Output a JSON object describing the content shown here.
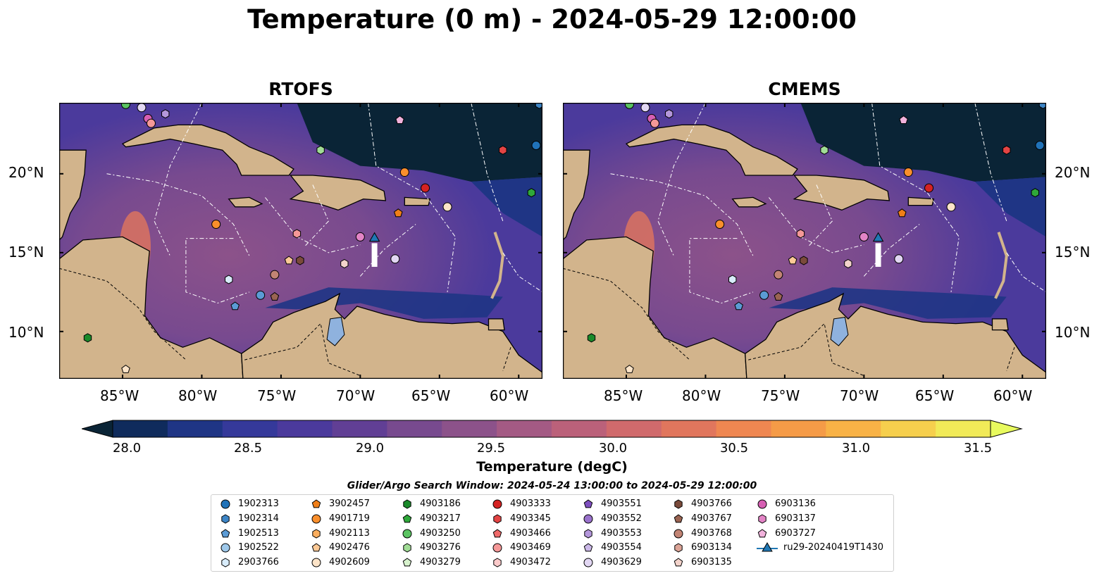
{
  "title": "Temperature (0 m) - 2024-05-29 12:00:00",
  "panels": [
    {
      "title": "RTOFS"
    },
    {
      "title": "CMEMS"
    }
  ],
  "lat_labels": [
    "20°N",
    "15°N",
    "10°N"
  ],
  "lon_labels": [
    "85°W",
    "80°W",
    "75°W",
    "70°W",
    "65°W",
    "60°W"
  ],
  "lon_values": [
    -85,
    -80,
    -75,
    -70,
    -65,
    -60
  ],
  "lat_values": [
    20,
    15,
    10
  ],
  "extent": {
    "lon": [
      -89,
      -58.5
    ],
    "lat": [
      7,
      24.5
    ]
  },
  "colorbar": {
    "label": "Temperature (degC)",
    "ticks": [
      "28.0",
      "28.5",
      "29.0",
      "29.5",
      "30.0",
      "30.5",
      "31.0",
      "31.5"
    ],
    "tick_values": [
      28.0,
      28.5,
      29.0,
      29.5,
      30.0,
      30.5,
      31.0,
      31.5
    ],
    "range": [
      28.0,
      31.5
    ],
    "colors": [
      "#0a2436",
      "#0f2b5c",
      "#1f3585",
      "#35399a",
      "#4b3a9c",
      "#613f95",
      "#784a8f",
      "#8c528a",
      "#a45a84",
      "#bb617a",
      "#d06a6c",
      "#e1765d",
      "#ef8751",
      "#f59b47",
      "#f8b246",
      "#f6cf4d",
      "#f1ea58",
      "#e8fa5e"
    ]
  },
  "land_color": "#d2b48c",
  "lake_color": "#8fb2de",
  "legend": {
    "title": "Glider/Argo Search Window: 2024-05-24 13:00:00 to 2024-05-29 12:00:00",
    "items": [
      {
        "label": "1902313",
        "color": "#2072b8",
        "shape": "circle"
      },
      {
        "label": "1902314",
        "color": "#3d85c6",
        "shape": "hexagon"
      },
      {
        "label": "1902513",
        "color": "#5b9bd5",
        "shape": "pentagon"
      },
      {
        "label": "1902522",
        "color": "#9ec8ea",
        "shape": "circle"
      },
      {
        "label": "2903766",
        "color": "#d8ecfb",
        "shape": "hexagon"
      },
      {
        "label": "3902457",
        "color": "#f07f18",
        "shape": "pentagon"
      },
      {
        "label": "4901719",
        "color": "#fa8f2c",
        "shape": "circle"
      },
      {
        "label": "4902113",
        "color": "#fbae5e",
        "shape": "hexagon"
      },
      {
        "label": "4902476",
        "color": "#fcc996",
        "shape": "pentagon"
      },
      {
        "label": "4902609",
        "color": "#fde4c8",
        "shape": "circle"
      },
      {
        "label": "4903186",
        "color": "#1a8a2a",
        "shape": "hexagon"
      },
      {
        "label": "4903217",
        "color": "#2fa83a",
        "shape": "pentagon"
      },
      {
        "label": "4903250",
        "color": "#5bc462",
        "shape": "circle"
      },
      {
        "label": "4903276",
        "color": "#a1dd96",
        "shape": "hexagon"
      },
      {
        "label": "4903279",
        "color": "#d7f2cd",
        "shape": "pentagon"
      },
      {
        "label": "4903333",
        "color": "#d42222",
        "shape": "circle"
      },
      {
        "label": "4903345",
        "color": "#e34444",
        "shape": "hexagon"
      },
      {
        "label": "4903466",
        "color": "#ef6a6a",
        "shape": "pentagon"
      },
      {
        "label": "4903469",
        "color": "#f59898",
        "shape": "circle"
      },
      {
        "label": "4903472",
        "color": "#fbcaca",
        "shape": "hexagon"
      },
      {
        "label": "4903551",
        "color": "#7e4fbf",
        "shape": "pentagon"
      },
      {
        "label": "4903552",
        "color": "#9a72cc",
        "shape": "circle"
      },
      {
        "label": "4903553",
        "color": "#b497db",
        "shape": "hexagon"
      },
      {
        "label": "4903554",
        "color": "#cbb8e8",
        "shape": "pentagon"
      },
      {
        "label": "4903629",
        "color": "#e2d7f3",
        "shape": "circle"
      },
      {
        "label": "4903766",
        "color": "#7a4a3a",
        "shape": "hexagon"
      },
      {
        "label": "4903767",
        "color": "#9a6452",
        "shape": "pentagon"
      },
      {
        "label": "4903768",
        "color": "#c28474",
        "shape": "circle"
      },
      {
        "label": "6903134",
        "color": "#dca497",
        "shape": "hexagon"
      },
      {
        "label": "6903135",
        "color": "#f3d3cb",
        "shape": "pentagon"
      },
      {
        "label": "6903136",
        "color": "#d65fb3",
        "shape": "circle"
      },
      {
        "label": "6903137",
        "color": "#e384c6",
        "shape": "hexagon"
      },
      {
        "label": "6903727",
        "color": "#f1b2dc",
        "shape": "pentagon"
      },
      {
        "label": "ru29-20240419T1430",
        "color": "#1f77b4",
        "shape": "triangle-line"
      }
    ]
  },
  "markers": [
    {
      "lon": -69.1,
      "lat": 15.9,
      "color": "#1f77b4",
      "shape": "triangle"
    },
    {
      "lon": -70.0,
      "lat": 16.0,
      "color": "#e384c6",
      "shape": "circle"
    },
    {
      "lon": -67.8,
      "lat": 14.6,
      "color": "#e2d7f3",
      "shape": "circle"
    },
    {
      "lon": -71.0,
      "lat": 14.3,
      "color": "#f3d3cb",
      "shape": "hexagon"
    },
    {
      "lon": -65.9,
      "lat": 19.1,
      "color": "#d42222",
      "shape": "circle"
    },
    {
      "lon": -67.2,
      "lat": 20.1,
      "color": "#fa8f2c",
      "shape": "circle"
    },
    {
      "lon": -67.6,
      "lat": 17.5,
      "color": "#f07f18",
      "shape": "pentagon"
    },
    {
      "lon": -64.5,
      "lat": 17.9,
      "color": "#fde4c8",
      "shape": "circle"
    },
    {
      "lon": -72.5,
      "lat": 21.5,
      "color": "#a1dd96",
      "shape": "hexagon"
    },
    {
      "lon": -67.5,
      "lat": 23.4,
      "color": "#f1b2dc",
      "shape": "pentagon"
    },
    {
      "lon": -61.0,
      "lat": 21.5,
      "color": "#e34444",
      "shape": "hexagon"
    },
    {
      "lon": -58.9,
      "lat": 21.8,
      "color": "#2072b8",
      "shape": "circle"
    },
    {
      "lon": -59.2,
      "lat": 18.8,
      "color": "#2fa83a",
      "shape": "hexagon"
    },
    {
      "lon": -79.1,
      "lat": 16.8,
      "color": "#fa8f2c",
      "shape": "circle"
    },
    {
      "lon": -74.0,
      "lat": 16.2,
      "color": "#f59898",
      "shape": "hexagon"
    },
    {
      "lon": -74.5,
      "lat": 14.5,
      "color": "#fcc996",
      "shape": "pentagon"
    },
    {
      "lon": -73.8,
      "lat": 14.5,
      "color": "#7a4a3a",
      "shape": "hexagon"
    },
    {
      "lon": -75.4,
      "lat": 13.6,
      "color": "#c28474",
      "shape": "circle"
    },
    {
      "lon": -78.3,
      "lat": 13.3,
      "color": "#d8ecfb",
      "shape": "hexagon"
    },
    {
      "lon": -76.3,
      "lat": 12.3,
      "color": "#5b9bd5",
      "shape": "circle"
    },
    {
      "lon": -75.4,
      "lat": 12.2,
      "color": "#9a6452",
      "shape": "pentagon"
    },
    {
      "lon": -77.9,
      "lat": 11.6,
      "color": "#5b9bd5",
      "shape": "pentagon"
    },
    {
      "lon": -87.2,
      "lat": 9.6,
      "color": "#1a8a2a",
      "shape": "hexagon"
    },
    {
      "lon": -84.8,
      "lat": 7.6,
      "color": "#fde4c8",
      "shape": "pentagon"
    },
    {
      "lon": -84.8,
      "lat": 24.4,
      "color": "#5bc462",
      "shape": "circle"
    },
    {
      "lon": -83.8,
      "lat": 24.2,
      "color": "#e2d7f3",
      "shape": "circle"
    },
    {
      "lon": -83.4,
      "lat": 23.5,
      "color": "#d65fb3",
      "shape": "circle"
    },
    {
      "lon": -83.2,
      "lat": 23.2,
      "color": "#f59898",
      "shape": "circle"
    },
    {
      "lon": -82.3,
      "lat": 23.8,
      "color": "#b497db",
      "shape": "hexagon"
    },
    {
      "lon": -58.7,
      "lat": 24.4,
      "color": "#3d85c6",
      "shape": "hexagon"
    }
  ]
}
